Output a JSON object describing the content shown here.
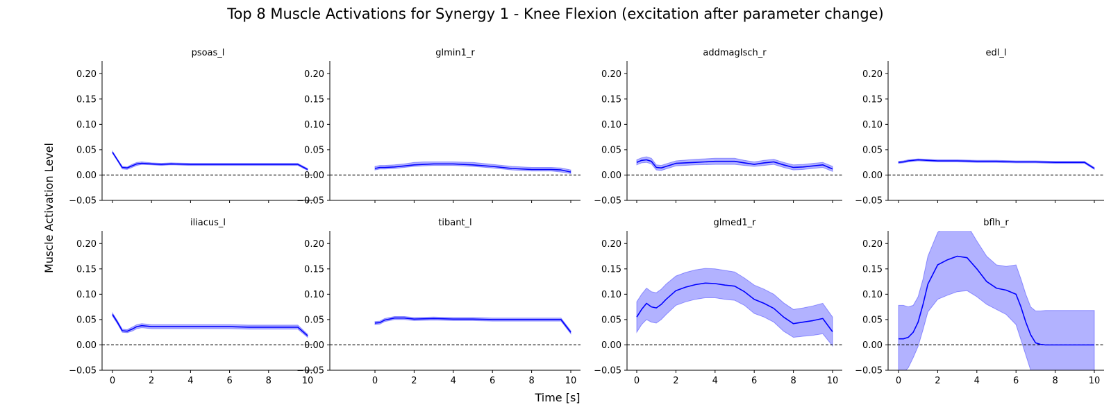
{
  "figure": {
    "title": "Top 8 Muscle Activations for Synergy 1 - Knee Flexion (excitation after parameter change)",
    "xlabel": "Time [s]",
    "ylabel": "Muscle Activation Level",
    "colors": {
      "line": "#0000ff",
      "band": "#0000ff",
      "zero_line": "#000000"
    }
  },
  "chart_data": [
    {
      "type": "line",
      "title": "psoas_l",
      "xlim": [
        0,
        10
      ],
      "ylim": [
        -0.05,
        0.225
      ],
      "xticks": [
        0,
        2,
        4,
        6,
        8,
        10
      ],
      "yticks": [
        -0.05,
        0.0,
        0.05,
        0.1,
        0.15,
        0.2
      ],
      "x": [
        0,
        0.25,
        0.5,
        0.75,
        1,
        1.25,
        1.5,
        2,
        2.5,
        3,
        4,
        5,
        6,
        7,
        8,
        9,
        9.5,
        10
      ],
      "mean": [
        0.045,
        0.03,
        0.015,
        0.014,
        0.018,
        0.022,
        0.023,
        0.022,
        0.021,
        0.022,
        0.021,
        0.021,
        0.021,
        0.021,
        0.021,
        0.021,
        0.021,
        0.011
      ],
      "lower": [
        0.043,
        0.028,
        0.012,
        0.011,
        0.015,
        0.019,
        0.021,
        0.02,
        0.019,
        0.02,
        0.019,
        0.019,
        0.019,
        0.019,
        0.019,
        0.019,
        0.019,
        0.009
      ],
      "upper": [
        0.047,
        0.032,
        0.017,
        0.016,
        0.021,
        0.025,
        0.026,
        0.024,
        0.023,
        0.024,
        0.023,
        0.023,
        0.023,
        0.023,
        0.023,
        0.023,
        0.023,
        0.013
      ]
    },
    {
      "type": "line",
      "title": "glmin1_r",
      "xlim": [
        0,
        10
      ],
      "ylim": [
        -0.05,
        0.225
      ],
      "xticks": [
        0,
        2,
        4,
        6,
        8,
        10
      ],
      "yticks": [
        -0.05,
        0.0,
        0.05,
        0.1,
        0.15,
        0.2
      ],
      "x": [
        0,
        0.25,
        0.5,
        1,
        1.5,
        2,
        2.5,
        3,
        3.5,
        4,
        5,
        6,
        7,
        8,
        9,
        9.5,
        10
      ],
      "mean": [
        0.013,
        0.015,
        0.015,
        0.016,
        0.018,
        0.02,
        0.021,
        0.022,
        0.022,
        0.022,
        0.02,
        0.017,
        0.013,
        0.011,
        0.011,
        0.01,
        0.006
      ],
      "lower": [
        0.01,
        0.012,
        0.012,
        0.013,
        0.015,
        0.017,
        0.018,
        0.019,
        0.019,
        0.019,
        0.017,
        0.014,
        0.01,
        0.008,
        0.008,
        0.006,
        0.003
      ],
      "upper": [
        0.017,
        0.019,
        0.019,
        0.02,
        0.022,
        0.025,
        0.026,
        0.026,
        0.026,
        0.026,
        0.025,
        0.021,
        0.017,
        0.015,
        0.015,
        0.014,
        0.01
      ]
    },
    {
      "type": "line",
      "title": "addmagIsch_r",
      "xlim": [
        0,
        10
      ],
      "ylim": [
        -0.05,
        0.225
      ],
      "xticks": [
        0,
        2,
        4,
        6,
        8,
        10
      ],
      "yticks": [
        -0.05,
        0.0,
        0.05,
        0.1,
        0.15,
        0.2
      ],
      "x": [
        0,
        0.25,
        0.5,
        0.75,
        1,
        1.25,
        1.5,
        2,
        3,
        4,
        5,
        5.5,
        6,
        6.5,
        7,
        7.5,
        8,
        8.5,
        9,
        9.5,
        10
      ],
      "mean": [
        0.025,
        0.029,
        0.03,
        0.027,
        0.015,
        0.014,
        0.017,
        0.023,
        0.025,
        0.027,
        0.027,
        0.024,
        0.021,
        0.024,
        0.026,
        0.02,
        0.015,
        0.016,
        0.018,
        0.02,
        0.012
      ],
      "lower": [
        0.02,
        0.024,
        0.025,
        0.022,
        0.01,
        0.009,
        0.012,
        0.018,
        0.02,
        0.021,
        0.021,
        0.019,
        0.017,
        0.019,
        0.021,
        0.015,
        0.01,
        0.011,
        0.013,
        0.015,
        0.007
      ],
      "upper": [
        0.03,
        0.034,
        0.036,
        0.033,
        0.02,
        0.019,
        0.022,
        0.028,
        0.031,
        0.033,
        0.033,
        0.029,
        0.026,
        0.029,
        0.031,
        0.025,
        0.02,
        0.021,
        0.023,
        0.025,
        0.017
      ]
    },
    {
      "type": "line",
      "title": "edl_l",
      "xlim": [
        0,
        10
      ],
      "ylim": [
        -0.05,
        0.225
      ],
      "xticks": [
        0,
        2,
        4,
        6,
        8,
        10
      ],
      "yticks": [
        -0.05,
        0.0,
        0.05,
        0.1,
        0.15,
        0.2
      ],
      "x": [
        0,
        0.25,
        0.5,
        1,
        1.5,
        2,
        3,
        4,
        5,
        6,
        7,
        8,
        9,
        9.5,
        10
      ],
      "mean": [
        0.025,
        0.026,
        0.028,
        0.03,
        0.029,
        0.028,
        0.028,
        0.027,
        0.027,
        0.026,
        0.026,
        0.025,
        0.025,
        0.025,
        0.013
      ],
      "lower": [
        0.023,
        0.024,
        0.026,
        0.028,
        0.027,
        0.026,
        0.026,
        0.025,
        0.025,
        0.024,
        0.024,
        0.023,
        0.023,
        0.023,
        0.011
      ],
      "upper": [
        0.027,
        0.028,
        0.03,
        0.032,
        0.031,
        0.03,
        0.03,
        0.029,
        0.029,
        0.028,
        0.028,
        0.027,
        0.027,
        0.027,
        0.015
      ]
    },
    {
      "type": "line",
      "title": "iliacus_l",
      "xlim": [
        0,
        10
      ],
      "ylim": [
        -0.05,
        0.225
      ],
      "xticks": [
        0,
        2,
        4,
        6,
        8,
        10
      ],
      "yticks": [
        -0.05,
        0.0,
        0.05,
        0.1,
        0.15,
        0.2
      ],
      "x": [
        0,
        0.25,
        0.5,
        0.75,
        1,
        1.25,
        1.5,
        2,
        2.5,
        3,
        4,
        5,
        6,
        7,
        8,
        9,
        9.5,
        10
      ],
      "mean": [
        0.06,
        0.045,
        0.028,
        0.027,
        0.031,
        0.036,
        0.038,
        0.036,
        0.036,
        0.036,
        0.036,
        0.036,
        0.036,
        0.035,
        0.035,
        0.035,
        0.035,
        0.018
      ],
      "lower": [
        0.057,
        0.042,
        0.025,
        0.024,
        0.027,
        0.032,
        0.034,
        0.032,
        0.032,
        0.032,
        0.032,
        0.032,
        0.032,
        0.031,
        0.031,
        0.031,
        0.031,
        0.015
      ],
      "upper": [
        0.063,
        0.048,
        0.031,
        0.03,
        0.035,
        0.04,
        0.042,
        0.04,
        0.04,
        0.04,
        0.04,
        0.04,
        0.04,
        0.039,
        0.039,
        0.039,
        0.039,
        0.021
      ]
    },
    {
      "type": "line",
      "title": "tibant_l",
      "xlim": [
        0,
        10
      ],
      "ylim": [
        -0.05,
        0.225
      ],
      "xticks": [
        0,
        2,
        4,
        6,
        8,
        10
      ],
      "yticks": [
        -0.05,
        0.0,
        0.05,
        0.1,
        0.15,
        0.2
      ],
      "x": [
        0,
        0.25,
        0.5,
        1,
        1.5,
        2,
        3,
        4,
        5,
        6,
        7,
        8,
        9,
        9.5,
        10
      ],
      "mean": [
        0.043,
        0.044,
        0.049,
        0.053,
        0.053,
        0.051,
        0.052,
        0.051,
        0.051,
        0.05,
        0.05,
        0.05,
        0.05,
        0.05,
        0.025
      ],
      "lower": [
        0.04,
        0.041,
        0.046,
        0.05,
        0.05,
        0.048,
        0.049,
        0.048,
        0.048,
        0.047,
        0.047,
        0.047,
        0.047,
        0.047,
        0.022
      ],
      "upper": [
        0.046,
        0.047,
        0.052,
        0.056,
        0.056,
        0.054,
        0.055,
        0.054,
        0.054,
        0.053,
        0.053,
        0.053,
        0.053,
        0.053,
        0.028
      ]
    },
    {
      "type": "line",
      "title": "glmed1_r",
      "xlim": [
        0,
        10
      ],
      "ylim": [
        -0.05,
        0.225
      ],
      "xticks": [
        0,
        2,
        4,
        6,
        8,
        10
      ],
      "yticks": [
        -0.05,
        0.0,
        0.05,
        0.1,
        0.15,
        0.2
      ],
      "x": [
        0,
        0.25,
        0.5,
        0.75,
        1,
        1.25,
        1.5,
        2,
        2.5,
        3,
        3.5,
        4,
        4.5,
        5,
        5.5,
        6,
        6.5,
        7,
        7.5,
        8,
        8.5,
        9,
        9.5,
        10
      ],
      "mean": [
        0.055,
        0.07,
        0.082,
        0.075,
        0.073,
        0.08,
        0.09,
        0.107,
        0.114,
        0.119,
        0.122,
        0.121,
        0.118,
        0.116,
        0.105,
        0.09,
        0.082,
        0.072,
        0.055,
        0.042,
        0.045,
        0.048,
        0.052,
        0.026
      ],
      "lower": [
        0.025,
        0.04,
        0.05,
        0.045,
        0.043,
        0.05,
        0.06,
        0.078,
        0.085,
        0.09,
        0.093,
        0.093,
        0.09,
        0.088,
        0.078,
        0.062,
        0.055,
        0.045,
        0.027,
        0.015,
        0.017,
        0.019,
        0.022,
        -0.002
      ],
      "upper": [
        0.085,
        0.1,
        0.112,
        0.105,
        0.103,
        0.11,
        0.12,
        0.136,
        0.143,
        0.148,
        0.151,
        0.15,
        0.147,
        0.144,
        0.132,
        0.118,
        0.11,
        0.1,
        0.083,
        0.07,
        0.073,
        0.077,
        0.082,
        0.055
      ]
    },
    {
      "type": "line",
      "title": "bflh_r",
      "xlim": [
        0,
        10
      ],
      "ylim": [
        -0.05,
        0.225
      ],
      "xticks": [
        0,
        2,
        4,
        6,
        8,
        10
      ],
      "yticks": [
        -0.05,
        0.0,
        0.05,
        0.1,
        0.15,
        0.2
      ],
      "x": [
        0,
        0.25,
        0.5,
        0.75,
        1,
        1.25,
        1.5,
        2,
        2.5,
        3,
        3.5,
        4,
        4.5,
        5,
        5.5,
        6,
        6.25,
        6.5,
        6.75,
        7,
        7.25,
        7.5,
        8,
        9,
        10
      ],
      "mean": [
        0.012,
        0.012,
        0.015,
        0.025,
        0.045,
        0.08,
        0.12,
        0.158,
        0.168,
        0.175,
        0.172,
        0.15,
        0.125,
        0.112,
        0.108,
        0.1,
        0.075,
        0.045,
        0.02,
        0.004,
        0.001,
        0.0,
        0.0,
        0.0,
        0.0
      ],
      "lower": [
        -0.055,
        -0.055,
        -0.045,
        -0.025,
        -0.003,
        0.03,
        0.065,
        0.09,
        0.098,
        0.105,
        0.107,
        0.095,
        0.08,
        0.07,
        0.06,
        0.04,
        0.01,
        -0.02,
        -0.05,
        -0.065,
        -0.067,
        -0.068,
        -0.068,
        -0.068,
        -0.068
      ],
      "upper": [
        0.078,
        0.078,
        0.075,
        0.078,
        0.095,
        0.13,
        0.175,
        0.222,
        0.24,
        0.242,
        0.237,
        0.205,
        0.175,
        0.158,
        0.155,
        0.158,
        0.13,
        0.1,
        0.075,
        0.067,
        0.067,
        0.068,
        0.068,
        0.068,
        0.068
      ]
    }
  ]
}
